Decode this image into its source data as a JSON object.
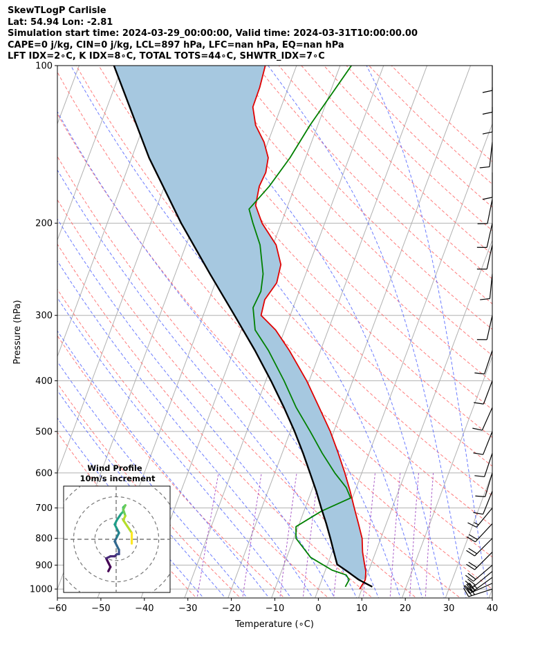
{
  "header": {
    "line1": "SkewTLogP Carlisle",
    "line2": "Lat: 54.94   Lon: -2.81",
    "line3": "Simulation start time: 2024-03-29_00:00:00, Valid time: 2024-03-31T10:00:00.00",
    "line4": "CAPE=0 j/kg, CIN=0 j/kg, LCL=897 hPa, LFC=nan hPa, EQ=nan hPa",
    "line5": "LFT IDX=2∘C, K IDX=8∘C, TOTAL TOTS=44∘C, SHWTR_IDX=7∘C"
  },
  "chart_data": {
    "type": "line",
    "title": "SkewTLogP Carlisle",
    "xlabel": "Temperature (∘C)",
    "ylabel": "Pressure (hPa)",
    "xlim": [
      -60,
      40
    ],
    "ylim": [
      1040,
      100
    ],
    "skew_deg_per_log_unit": 45,
    "x_ticks": [
      -60,
      -50,
      -40,
      -30,
      -20,
      -10,
      0,
      10,
      20,
      30,
      40
    ],
    "x_tick_labels": [
      "−60",
      "−50",
      "−40",
      "−30",
      "−20",
      "−10",
      "0",
      "10",
      "20",
      "30",
      "40"
    ],
    "y_ticks": [
      1000,
      900,
      800,
      700,
      600,
      500,
      400,
      300,
      200,
      100
    ],
    "y_tick_labels": [
      "1000",
      "900",
      "800",
      "700",
      "600",
      "500",
      "400",
      "300",
      "200",
      "100"
    ],
    "series": [
      {
        "name": "Temperature",
        "color": "#e00000",
        "points": [
          [
            1000,
            9.5
          ],
          [
            960,
            10.0
          ],
          [
            925,
            9.4
          ],
          [
            900,
            8.6
          ],
          [
            850,
            7.0
          ],
          [
            800,
            5.7
          ],
          [
            750,
            3.6
          ],
          [
            700,
            1.3
          ],
          [
            650,
            -1.1
          ],
          [
            600,
            -3.9
          ],
          [
            550,
            -7.1
          ],
          [
            500,
            -10.8
          ],
          [
            450,
            -15.4
          ],
          [
            400,
            -20.6
          ],
          [
            350,
            -27.2
          ],
          [
            320,
            -32.1
          ],
          [
            300,
            -36.7
          ],
          [
            280,
            -37.2
          ],
          [
            260,
            -35.9
          ],
          [
            240,
            -36.5
          ],
          [
            220,
            -39.3
          ],
          [
            200,
            -44.4
          ],
          [
            185,
            -47.4
          ],
          [
            170,
            -48.2
          ],
          [
            160,
            -47.9
          ],
          [
            150,
            -48.6
          ],
          [
            140,
            -50.9
          ],
          [
            130,
            -54.3
          ],
          [
            120,
            -56.5
          ],
          [
            110,
            -56.6
          ],
          [
            100,
            -57.2
          ]
        ]
      },
      {
        "name": "Dewpoint",
        "color": "#008000",
        "points": [
          [
            990,
            6.0
          ],
          [
            960,
            6.3
          ],
          [
            940,
            5.2
          ],
          [
            920,
            1.5
          ],
          [
            870,
            -4.5
          ],
          [
            800,
            -9.5
          ],
          [
            760,
            -10.5
          ],
          [
            710,
            -6.0
          ],
          [
            670,
            -0.4
          ],
          [
            640,
            -2.3
          ],
          [
            600,
            -6.2
          ],
          [
            550,
            -10.8
          ],
          [
            500,
            -15.4
          ],
          [
            450,
            -20.7
          ],
          [
            400,
            -25.8
          ],
          [
            350,
            -32.0
          ],
          [
            320,
            -36.8
          ],
          [
            290,
            -39.2
          ],
          [
            270,
            -38.8
          ],
          [
            250,
            -39.8
          ],
          [
            220,
            -43.0
          ],
          [
            200,
            -46.5
          ],
          [
            188,
            -48.6
          ],
          [
            170,
            -45.9
          ],
          [
            150,
            -43.6
          ],
          [
            130,
            -41.8
          ],
          [
            100,
            -37.4
          ]
        ]
      },
      {
        "name": "Parcel profile",
        "color": "#000000",
        "points": [
          [
            990,
            12.2
          ],
          [
            960,
            8.5
          ],
          [
            925,
            5.1
          ],
          [
            897,
            2.2
          ],
          [
            850,
            0.4
          ],
          [
            800,
            -1.6
          ],
          [
            750,
            -3.8
          ],
          [
            700,
            -6.3
          ],
          [
            650,
            -8.9
          ],
          [
            600,
            -11.9
          ],
          [
            550,
            -15.2
          ],
          [
            500,
            -19.0
          ],
          [
            450,
            -23.5
          ],
          [
            400,
            -28.8
          ],
          [
            350,
            -35.1
          ],
          [
            300,
            -42.8
          ],
          [
            250,
            -52.0
          ],
          [
            200,
            -63.0
          ],
          [
            150,
            -76.0
          ],
          [
            100,
            -92.0
          ]
        ]
      }
    ],
    "shading": {
      "name": "CIN/CAPE fill between temperature and parcel",
      "color": "#a6c8e0"
    },
    "reference_lines": {
      "isotherms_step_c": 10,
      "dry_adiabats_color": "#ff6b6b",
      "moist_adiabats_color": "#5a6bff",
      "mixing_ratio_color": "#9b3fbf"
    },
    "wind_barbs": [
      {
        "p": 1000,
        "u": 28,
        "v": 9
      },
      {
        "p": 975,
        "u": 27,
        "v": 12
      },
      {
        "p": 950,
        "u": 22,
        "v": 16
      },
      {
        "p": 925,
        "u": 17,
        "v": 14
      },
      {
        "p": 900,
        "u": 14,
        "v": 12
      },
      {
        "p": 850,
        "u": 14,
        "v": 14
      },
      {
        "p": 800,
        "u": 13,
        "v": 13
      },
      {
        "p": 750,
        "u": 13,
        "v": 14
      },
      {
        "p": 700,
        "u": 9,
        "v": 11
      },
      {
        "p": 650,
        "u": 4,
        "v": 10
      },
      {
        "p": 600,
        "u": 3,
        "v": 10
      },
      {
        "p": 550,
        "u": 3,
        "v": 9
      },
      {
        "p": 500,
        "u": 4,
        "v": 10
      },
      {
        "p": 450,
        "u": 4,
        "v": 9
      },
      {
        "p": 400,
        "u": 3,
        "v": 8
      },
      {
        "p": 350,
        "u": 3,
        "v": 9
      },
      {
        "p": 300,
        "u": 2,
        "v": 9
      },
      {
        "p": 250,
        "u": 1,
        "v": 10
      },
      {
        "p": 220,
        "u": 2,
        "v": 9
      },
      {
        "p": 200,
        "u": 2,
        "v": 9
      },
      {
        "p": 180,
        "u": 2,
        "v": 10
      },
      {
        "p": 160,
        "u": 0,
        "v": 11
      },
      {
        "p": 140,
        "u": 1,
        "v": 9
      },
      {
        "p": 120,
        "u": 0,
        "v": 8
      },
      {
        "p": 110,
        "u": 0,
        "v": 9
      },
      {
        "p": 100,
        "u": 0,
        "v": 8
      }
    ],
    "hodograph": {
      "title": "Wind Profile",
      "subtitle": "10m/s increment",
      "rings_ms": [
        10,
        20,
        30
      ],
      "range_ms": 25,
      "points_uv": [
        [
          -4,
          -15
        ],
        [
          -3,
          -13
        ],
        [
          -4,
          -11
        ],
        [
          -5,
          -9
        ],
        [
          -3,
          -8
        ],
        [
          -1,
          -8
        ],
        [
          0,
          -7
        ],
        [
          1,
          -7
        ],
        [
          1,
          -5
        ],
        [
          0,
          -3
        ],
        [
          -1,
          -1
        ],
        [
          0,
          1
        ],
        [
          1,
          3
        ],
        [
          0,
          5
        ],
        [
          -1,
          7
        ],
        [
          0,
          9
        ],
        [
          2,
          12
        ],
        [
          3,
          13
        ],
        [
          3,
          15
        ],
        [
          4,
          16
        ],
        [
          3,
          14
        ],
        [
          4,
          11
        ],
        [
          3,
          9
        ],
        [
          5,
          6
        ],
        [
          7,
          3
        ],
        [
          7,
          0
        ],
        [
          7,
          -2
        ]
      ]
    }
  }
}
